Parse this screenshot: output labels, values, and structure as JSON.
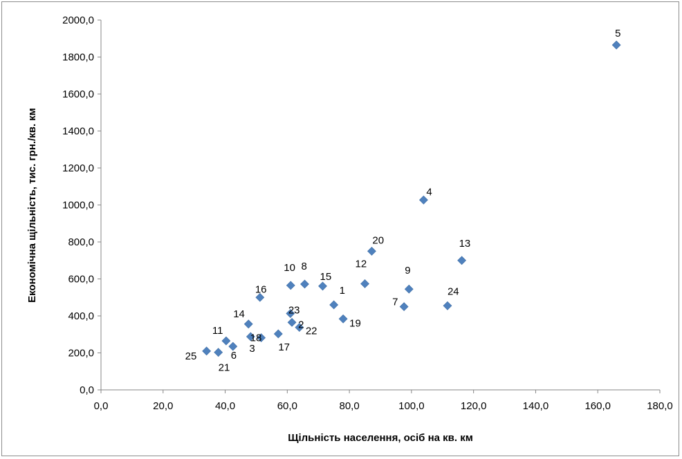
{
  "chart_data": {
    "type": "scatter",
    "title": "",
    "xlabel": "Щільність населення, осіб на кв. км",
    "ylabel": "Економічна щільність, тис. грн./кв. км",
    "xlim": [
      0,
      180
    ],
    "ylim": [
      0,
      2000
    ],
    "x_ticks": [
      "0,0",
      "20,0",
      "40,0",
      "60,0",
      "80,0",
      "100,0",
      "120,0",
      "140,0",
      "160,0",
      "180,0"
    ],
    "y_ticks": [
      "0,0",
      "200,0",
      "400,0",
      "600,0",
      "800,0",
      "1000,0",
      "1200,0",
      "1400,0",
      "1600,0",
      "1800,0",
      "2000,0"
    ],
    "grid": false,
    "legend": "none",
    "marker": "diamond",
    "color": "#4f81bd",
    "points": [
      {
        "label": "1",
        "x": 75.0,
        "y": 460
      },
      {
        "label": "2",
        "x": 61.5,
        "y": 365
      },
      {
        "label": "3",
        "x": 48.2,
        "y": 288
      },
      {
        "label": "4",
        "x": 103.9,
        "y": 1027
      },
      {
        "label": "5",
        "x": 166.0,
        "y": 1865
      },
      {
        "label": "6",
        "x": 42.5,
        "y": 235
      },
      {
        "label": "7",
        "x": 97.6,
        "y": 450
      },
      {
        "label": "8",
        "x": 65.6,
        "y": 572
      },
      {
        "label": "9",
        "x": 99.2,
        "y": 545
      },
      {
        "label": "10",
        "x": 61.1,
        "y": 565
      },
      {
        "label": "11",
        "x": 40.3,
        "y": 265
      },
      {
        "label": "12",
        "x": 85.0,
        "y": 574
      },
      {
        "label": "13",
        "x": 116.2,
        "y": 700
      },
      {
        "label": "14",
        "x": 47.5,
        "y": 356
      },
      {
        "label": "15",
        "x": 71.4,
        "y": 561
      },
      {
        "label": "16",
        "x": 51.2,
        "y": 500
      },
      {
        "label": "17",
        "x": 57.1,
        "y": 303
      },
      {
        "label": "18",
        "x": 51.6,
        "y": 282
      },
      {
        "label": "19",
        "x": 78.0,
        "y": 384
      },
      {
        "label": "20",
        "x": 87.2,
        "y": 750
      },
      {
        "label": "21",
        "x": 37.8,
        "y": 203
      },
      {
        "label": "22",
        "x": 63.9,
        "y": 338
      },
      {
        "label": "23",
        "x": 61.0,
        "y": 413
      },
      {
        "label": "24",
        "x": 111.6,
        "y": 455
      },
      {
        "label": "25",
        "x": 34.0,
        "y": 210
      }
    ]
  }
}
